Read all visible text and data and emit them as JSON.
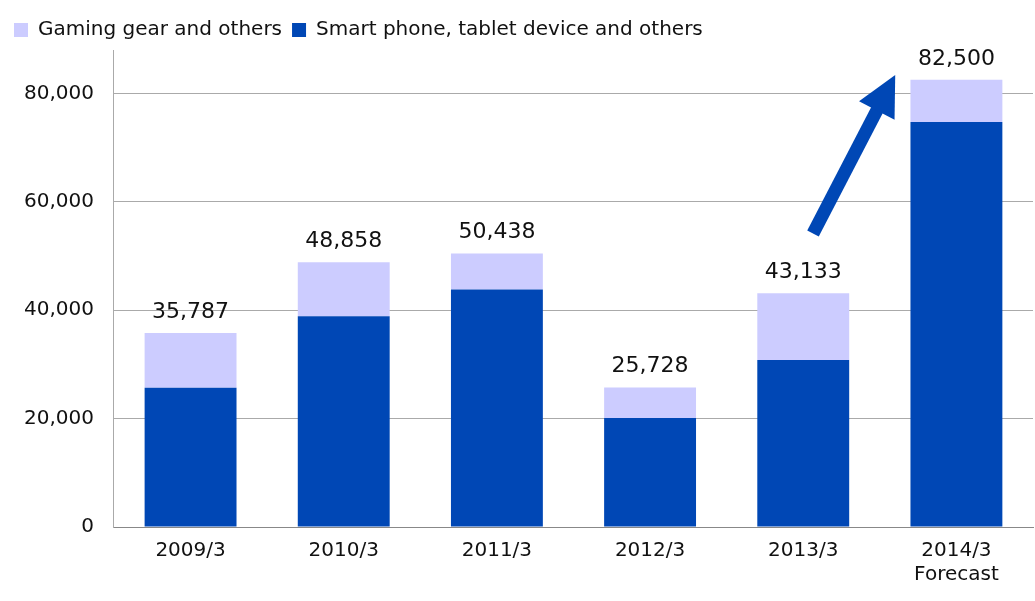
{
  "chart_data": {
    "type": "bar",
    "stacked": true,
    "categories": [
      "2009/3",
      "2010/3",
      "2011/3",
      "2012/3",
      "2013/3",
      "2014/3\nForecast"
    ],
    "series": [
      {
        "name": "Smart phone, tablet device and others",
        "color": "#0047b5",
        "values": [
          25700,
          38900,
          43800,
          20100,
          30800,
          74700
        ]
      },
      {
        "name": "Gaming gear and others",
        "color": "#ccccff",
        "values": [
          10087,
          9958,
          6638,
          5628,
          12333,
          7800
        ]
      }
    ],
    "totals": [
      "35,787",
      "48,858",
      "50,438",
      "25,728",
      "43,133",
      "82,500"
    ],
    "ylim": [
      0,
      88000
    ],
    "yticks": [
      0,
      {
        "value": 20000,
        "label": "20,000"
      },
      {
        "value": 40000,
        "label": "40,000"
      },
      {
        "value": 60000,
        "label": "60,000"
      },
      {
        "value": 80000,
        "label": "80,000"
      }
    ],
    "grid": "y",
    "legend": "top left"
  }
}
